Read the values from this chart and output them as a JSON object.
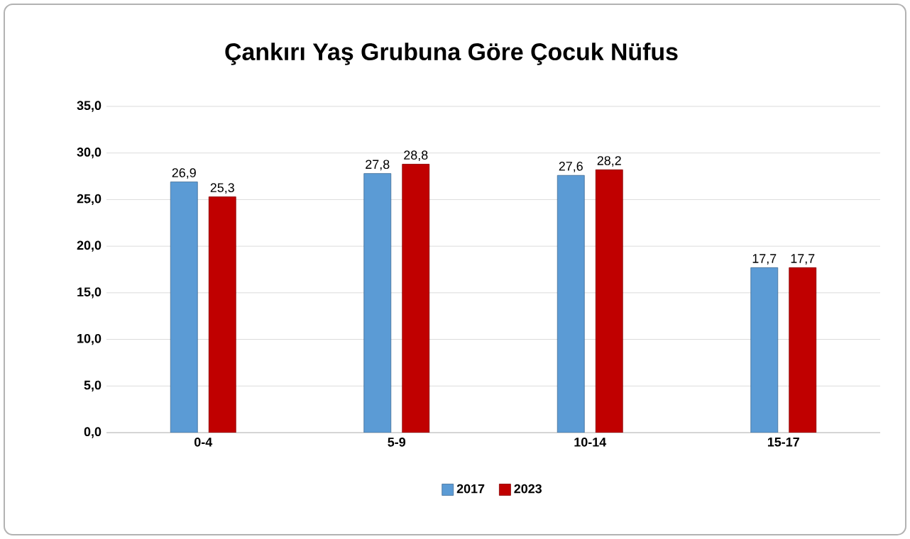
{
  "chart_data": {
    "type": "bar",
    "title": "Çankırı Yaş Grubuna Göre Çocuk Nüfus",
    "categories": [
      "0-4",
      "5-9",
      "10-14",
      "15-17"
    ],
    "series": [
      {
        "name": "2017",
        "color": "#5b9bd5",
        "values": [
          26.9,
          27.8,
          27.6,
          17.7
        ],
        "value_labels": [
          "26,9",
          "27,8",
          "27,6",
          "17,7"
        ]
      },
      {
        "name": "2023",
        "color": "#c00000",
        "values": [
          25.3,
          28.8,
          28.2,
          17.7
        ],
        "value_labels": [
          "25,3",
          "28,8",
          "28,2",
          "17,7"
        ]
      }
    ],
    "ylim": [
      0,
      35
    ],
    "yticks": [
      {
        "value": 0,
        "label": "0,0"
      },
      {
        "value": 5,
        "label": "5,0"
      },
      {
        "value": 10,
        "label": "10,0"
      },
      {
        "value": 15,
        "label": "15,0"
      },
      {
        "value": 20,
        "label": "20,0"
      },
      {
        "value": 25,
        "label": "25,0"
      },
      {
        "value": 30,
        "label": "30,0"
      },
      {
        "value": 35,
        "label": "35,0"
      }
    ],
    "grid": "y",
    "legend": "bottom"
  }
}
